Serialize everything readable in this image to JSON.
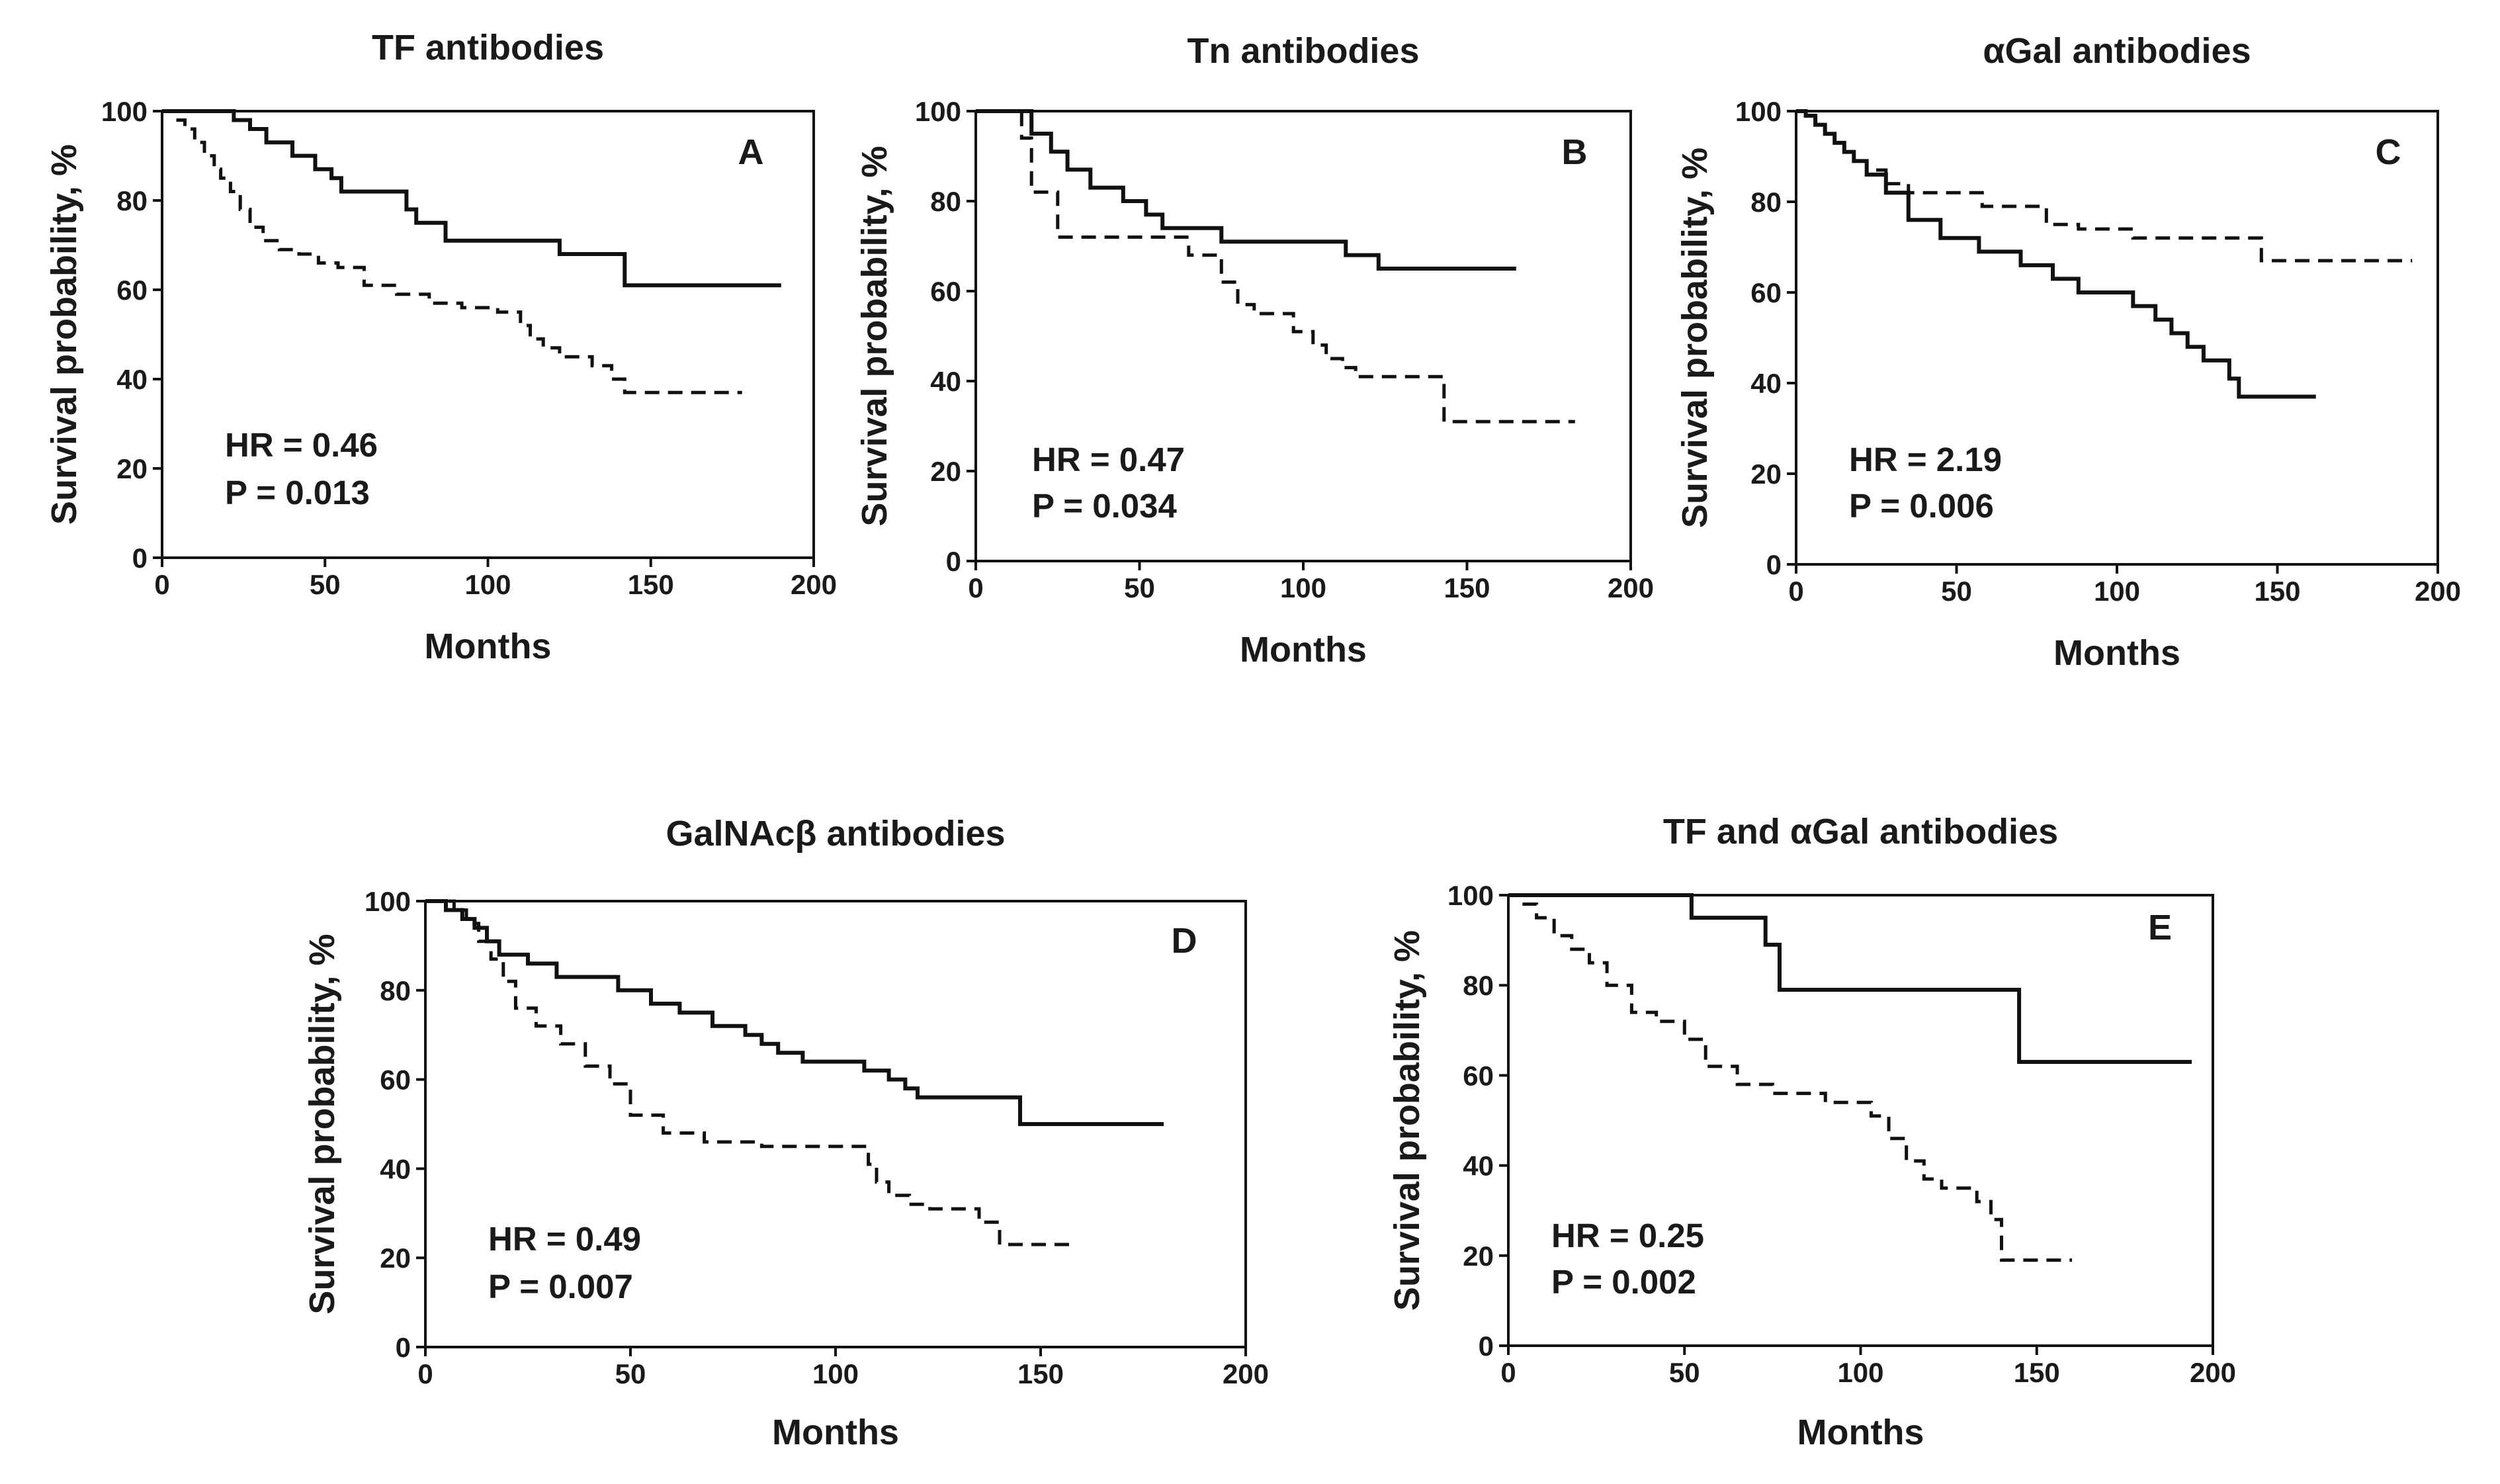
{
  "chart_data": [
    {
      "type": "line",
      "title": "TF antibodies",
      "panel_label": "A",
      "xlabel": "Months",
      "ylabel": "Survival probability, %",
      "xlim": [
        0,
        200
      ],
      "ylim": [
        0,
        100
      ],
      "xticks": [
        0,
        50,
        100,
        150,
        200
      ],
      "yticks": [
        0,
        20,
        40,
        60,
        80,
        100
      ],
      "stat_lines": [
        "HR = 0.46",
        "P = 0.013"
      ],
      "series": [
        {
          "style": "solid",
          "x": [
            0,
            17,
            22,
            27,
            32,
            40,
            47,
            52,
            55,
            75,
            78,
            87,
            122,
            142,
            190
          ],
          "y": [
            100,
            100,
            98,
            96,
            93,
            90,
            87,
            85,
            82,
            78,
            75,
            71,
            68,
            61,
            61
          ]
        },
        {
          "style": "dashed",
          "x": [
            0,
            4,
            7,
            10,
            13,
            16,
            18,
            21,
            24,
            27,
            31,
            36,
            42,
            48,
            54,
            62,
            72,
            82,
            92,
            103,
            110,
            113,
            117,
            122,
            132,
            138,
            142,
            148,
            170,
            178
          ],
          "y": [
            100,
            98,
            96,
            93,
            90,
            87,
            85,
            82,
            78,
            74,
            71,
            69,
            68,
            66,
            65,
            61,
            59,
            57,
            56,
            55,
            52,
            49,
            47,
            45,
            43,
            40,
            37,
            37,
            37,
            37
          ]
        }
      ]
    },
    {
      "type": "line",
      "title": "Tn antibodies",
      "panel_label": "B",
      "xlabel": "Months",
      "ylabel": "Survival probability, %",
      "xlim": [
        0,
        200
      ],
      "ylim": [
        0,
        100
      ],
      "xticks": [
        0,
        50,
        100,
        150,
        200
      ],
      "yticks": [
        0,
        20,
        40,
        60,
        80,
        100
      ],
      "stat_lines": [
        "HR = 0.47",
        "P = 0.034"
      ],
      "series": [
        {
          "style": "solid",
          "x": [
            0,
            13,
            17,
            23,
            28,
            35,
            45,
            52,
            57,
            75,
            98,
            113,
            117,
            123,
            165
          ],
          "y": [
            100,
            100,
            95,
            91,
            87,
            83,
            80,
            77,
            74,
            71,
            71,
            68,
            68,
            65,
            65
          ]
        },
        {
          "style": "dashed",
          "x": [
            0,
            12,
            14,
            17,
            25,
            55,
            65,
            75,
            80,
            85,
            97,
            103,
            107,
            112,
            116,
            127,
            143,
            145,
            183
          ],
          "y": [
            100,
            100,
            94,
            82,
            72,
            72,
            68,
            62,
            57,
            55,
            51,
            48,
            45,
            43,
            41,
            41,
            31,
            31,
            31
          ]
        }
      ]
    },
    {
      "type": "line",
      "title": "αGal antibodies",
      "panel_label": "C",
      "xlabel": "Months",
      "ylabel": "Survival probability, %",
      "xlim": [
        0,
        200
      ],
      "ylim": [
        0,
        100
      ],
      "xticks": [
        0,
        50,
        100,
        150,
        200
      ],
      "yticks": [
        0,
        20,
        40,
        60,
        80,
        100
      ],
      "stat_lines": [
        "HR = 2.19",
        "P = 0.006"
      ],
      "series": [
        {
          "style": "solid",
          "x": [
            0,
            3,
            6,
            9,
            12,
            15,
            18,
            22,
            28,
            35,
            45,
            57,
            70,
            80,
            88,
            105,
            112,
            117,
            122,
            127,
            135,
            138,
            162
          ],
          "y": [
            100,
            99,
            97,
            95,
            93,
            91,
            89,
            86,
            82,
            76,
            72,
            69,
            66,
            63,
            60,
            57,
            54,
            51,
            48,
            45,
            41,
            37,
            37
          ]
        },
        {
          "style": "dashed",
          "x": [
            0,
            3,
            6,
            9,
            12,
            15,
            18,
            22,
            28,
            35,
            42,
            58,
            78,
            88,
            105,
            145,
            148,
            192
          ],
          "y": [
            100,
            99,
            97,
            95,
            93,
            91,
            89,
            87,
            84,
            82,
            82,
            79,
            75,
            74,
            72,
            67,
            67,
            67
          ]
        }
      ]
    },
    {
      "type": "line",
      "title": "GalNAcβ antibodies",
      "panel_label": "D",
      "xlabel": "Months",
      "ylabel": "Survival probability, %",
      "xlim": [
        0,
        200
      ],
      "ylim": [
        0,
        100
      ],
      "xticks": [
        0,
        50,
        100,
        150,
        200
      ],
      "yticks": [
        0,
        20,
        40,
        60,
        80,
        100
      ],
      "stat_lines": [
        "HR = 0.49",
        "P = 0.007"
      ],
      "series": [
        {
          "style": "solid",
          "x": [
            0,
            5,
            9,
            12,
            15,
            18,
            25,
            32,
            47,
            55,
            62,
            70,
            78,
            82,
            86,
            92,
            107,
            113,
            117,
            120,
            145,
            180
          ],
          "y": [
            100,
            98,
            96,
            94,
            91,
            88,
            86,
            83,
            80,
            77,
            75,
            72,
            70,
            68,
            66,
            64,
            62,
            60,
            58,
            56,
            50,
            50
          ]
        },
        {
          "style": "dashed",
          "x": [
            0,
            7,
            10,
            13,
            16,
            19,
            22,
            27,
            33,
            39,
            45,
            50,
            58,
            68,
            82,
            108,
            110,
            113,
            118,
            123,
            135,
            140,
            158
          ],
          "y": [
            100,
            98,
            95,
            91,
            87,
            82,
            76,
            72,
            68,
            63,
            59,
            52,
            48,
            46,
            45,
            41,
            37,
            34,
            32,
            31,
            28,
            23,
            23
          ]
        }
      ]
    },
    {
      "type": "line",
      "title": "TF and αGal antibodies",
      "panel_label": "E",
      "xlabel": "Months",
      "ylabel": "Survival probability, %",
      "xlim": [
        0,
        200
      ],
      "ylim": [
        0,
        100
      ],
      "xticks": [
        0,
        50,
        100,
        150,
        200
      ],
      "yticks": [
        0,
        20,
        40,
        60,
        80,
        100
      ],
      "stat_lines": [
        "HR = 0.25",
        "P = 0.002"
      ],
      "series": [
        {
          "style": "solid",
          "x": [
            0,
            47,
            52,
            73,
            77,
            143,
            145,
            194
          ],
          "y": [
            100,
            100,
            95,
            89,
            79,
            79,
            63,
            63
          ]
        },
        {
          "style": "dashed",
          "x": [
            0,
            4,
            8,
            13,
            18,
            23,
            28,
            35,
            42,
            50,
            56,
            65,
            75,
            90,
            103,
            108,
            113,
            118,
            123,
            133,
            137,
            140,
            160
          ],
          "y": [
            100,
            98,
            95,
            91,
            88,
            85,
            80,
            74,
            72,
            68,
            62,
            58,
            56,
            54,
            51,
            46,
            41,
            37,
            35,
            32,
            28,
            19,
            19
          ]
        }
      ]
    }
  ]
}
